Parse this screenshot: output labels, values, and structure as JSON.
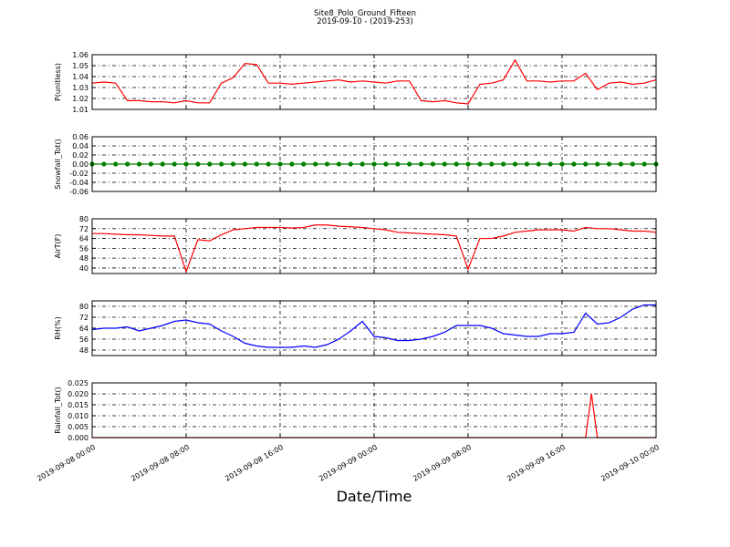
{
  "chart_data": [
    {
      "type": "line",
      "title": "Site8_Polo_Ground_Fifteen",
      "subtitle": "2019-09-10 - (2019-253)",
      "ylabel": "P(unitless)",
      "x": [
        "2019-09-08 00:00",
        "2019-09-08 01:00",
        "2019-09-08 02:00",
        "2019-09-08 03:00",
        "2019-09-08 04:00",
        "2019-09-08 05:00",
        "2019-09-08 06:00",
        "2019-09-08 07:00",
        "2019-09-08 08:00",
        "2019-09-08 09:00",
        "2019-09-08 10:00",
        "2019-09-08 11:00",
        "2019-09-08 12:00",
        "2019-09-08 13:00",
        "2019-09-08 14:00",
        "2019-09-08 15:00",
        "2019-09-08 16:00",
        "2019-09-08 17:00",
        "2019-09-08 18:00",
        "2019-09-08 19:00",
        "2019-09-08 20:00",
        "2019-09-08 21:00",
        "2019-09-08 22:00",
        "2019-09-08 23:00",
        "2019-09-09 00:00",
        "2019-09-09 01:00",
        "2019-09-09 02:00",
        "2019-09-09 03:00",
        "2019-09-09 04:00",
        "2019-09-09 05:00",
        "2019-09-09 06:00",
        "2019-09-09 07:00",
        "2019-09-09 08:00",
        "2019-09-09 09:00",
        "2019-09-09 10:00",
        "2019-09-09 11:00",
        "2019-09-09 12:00",
        "2019-09-09 13:00",
        "2019-09-09 14:00",
        "2019-09-09 15:00",
        "2019-09-09 16:00",
        "2019-09-09 17:00",
        "2019-09-09 18:00",
        "2019-09-09 19:00",
        "2019-09-09 20:00",
        "2019-09-09 21:00",
        "2019-09-09 22:00",
        "2019-09-09 23:00",
        "2019-09-10 00:00"
      ],
      "series": [
        {
          "color": "#ff0000",
          "values": [
            1.034,
            1.035,
            1.034,
            1.018,
            1.018,
            1.017,
            1.017,
            1.016,
            1.018,
            1.016,
            1.016,
            1.034,
            1.039,
            1.052,
            1.051,
            1.034,
            1.034,
            1.033,
            1.034,
            1.035,
            1.036,
            1.037,
            1.035,
            1.036,
            1.035,
            1.034,
            1.036,
            1.036,
            1.018,
            1.017,
            1.018,
            1.016,
            1.015,
            1.033,
            1.034,
            1.037,
            1.055,
            1.036,
            1.036,
            1.035,
            1.036,
            1.036,
            1.043,
            1.028,
            1.034,
            1.035,
            1.033,
            1.034,
            1.037
          ]
        }
      ],
      "xlim": [
        "2019-09-08 00:00",
        "2019-09-10 00:00"
      ],
      "xticks": [
        "2019-09-08 00:00",
        "2019-09-08 08:00",
        "2019-09-08 16:00",
        "2019-09-09 00:00",
        "2019-09-09 08:00",
        "2019-09-09 16:00",
        "2019-09-10 00:00"
      ],
      "ylim": [
        1.01,
        1.06
      ],
      "yticks": [
        1.01,
        1.02,
        1.03,
        1.04,
        1.05,
        1.06
      ],
      "grid": true
    },
    {
      "type": "line",
      "ylabel": "Snowfall_Tot()",
      "marker": true,
      "x": [
        "2019-09-08 00:00",
        "2019-09-08 01:00",
        "2019-09-08 02:00",
        "2019-09-08 03:00",
        "2019-09-08 04:00",
        "2019-09-08 05:00",
        "2019-09-08 06:00",
        "2019-09-08 07:00",
        "2019-09-08 08:00",
        "2019-09-08 09:00",
        "2019-09-08 10:00",
        "2019-09-08 11:00",
        "2019-09-08 12:00",
        "2019-09-08 13:00",
        "2019-09-08 14:00",
        "2019-09-08 15:00",
        "2019-09-08 16:00",
        "2019-09-08 17:00",
        "2019-09-08 18:00",
        "2019-09-08 19:00",
        "2019-09-08 20:00",
        "2019-09-08 21:00",
        "2019-09-08 22:00",
        "2019-09-08 23:00",
        "2019-09-09 00:00",
        "2019-09-09 01:00",
        "2019-09-09 02:00",
        "2019-09-09 03:00",
        "2019-09-09 04:00",
        "2019-09-09 05:00",
        "2019-09-09 06:00",
        "2019-09-09 07:00",
        "2019-09-09 08:00",
        "2019-09-09 09:00",
        "2019-09-09 10:00",
        "2019-09-09 11:00",
        "2019-09-09 12:00",
        "2019-09-09 13:00",
        "2019-09-09 14:00",
        "2019-09-09 15:00",
        "2019-09-09 16:00",
        "2019-09-09 17:00",
        "2019-09-09 18:00",
        "2019-09-09 19:00",
        "2019-09-09 20:00",
        "2019-09-09 21:00",
        "2019-09-09 22:00",
        "2019-09-09 23:00",
        "2019-09-10 00:00"
      ],
      "series": [
        {
          "color": "#008000",
          "values": [
            0,
            0,
            0,
            0,
            0,
            0,
            0,
            0,
            0,
            0,
            0,
            0,
            0,
            0,
            0,
            0,
            0,
            0,
            0,
            0,
            0,
            0,
            0,
            0,
            0,
            0,
            0,
            0,
            0,
            0,
            0,
            0,
            0,
            0,
            0,
            0,
            0,
            0,
            0,
            0,
            0,
            0,
            0,
            0,
            0,
            0,
            0,
            0,
            0
          ]
        }
      ],
      "xlim": [
        "2019-09-08 00:00",
        "2019-09-10 00:00"
      ],
      "xticks": [
        "2019-09-08 00:00",
        "2019-09-08 08:00",
        "2019-09-08 16:00",
        "2019-09-09 00:00",
        "2019-09-09 08:00",
        "2019-09-09 16:00",
        "2019-09-10 00:00"
      ],
      "ylim": [
        -0.06,
        0.06
      ],
      "yticks": [
        -0.06,
        -0.04,
        -0.02,
        {
          "value": 0,
          "label": "0.00"
        },
        0.02,
        0.04,
        0.06
      ],
      "grid": true
    },
    {
      "type": "line",
      "ylabel": "AirT(F)",
      "x": [
        "2019-09-08 00:00",
        "2019-09-08 01:00",
        "2019-09-08 02:00",
        "2019-09-08 03:00",
        "2019-09-08 04:00",
        "2019-09-08 05:00",
        "2019-09-08 06:00",
        "2019-09-08 07:00",
        "2019-09-08 08:00",
        "2019-09-08 09:00",
        "2019-09-08 10:00",
        "2019-09-08 11:00",
        "2019-09-08 12:00",
        "2019-09-08 13:00",
        "2019-09-08 14:00",
        "2019-09-08 15:00",
        "2019-09-08 16:00",
        "2019-09-08 17:00",
        "2019-09-08 18:00",
        "2019-09-08 19:00",
        "2019-09-08 20:00",
        "2019-09-08 21:00",
        "2019-09-08 22:00",
        "2019-09-08 23:00",
        "2019-09-09 00:00",
        "2019-09-09 01:00",
        "2019-09-09 02:00",
        "2019-09-09 03:00",
        "2019-09-09 04:00",
        "2019-09-09 05:00",
        "2019-09-09 06:00",
        "2019-09-09 07:00",
        "2019-09-09 08:00",
        "2019-09-09 09:00",
        "2019-09-09 10:00",
        "2019-09-09 11:00",
        "2019-09-09 12:00",
        "2019-09-09 13:00",
        "2019-09-09 14:00",
        "2019-09-09 15:00",
        "2019-09-09 16:00",
        "2019-09-09 17:00",
        "2019-09-09 18:00",
        "2019-09-09 19:00",
        "2019-09-09 20:00",
        "2019-09-09 21:00",
        "2019-09-09 22:00",
        "2019-09-09 23:00",
        "2019-09-10 00:00"
      ],
      "series": [
        {
          "color": "#ff0000",
          "values": [
            68,
            68,
            67.5,
            67,
            67,
            66.5,
            66,
            66,
            37,
            63,
            62,
            67,
            71,
            72,
            73,
            73,
            73,
            72.5,
            73,
            75,
            75,
            74,
            73.5,
            73,
            72,
            71,
            69,
            68.5,
            68,
            67.5,
            67,
            66,
            39,
            64,
            64,
            66,
            69,
            70,
            71,
            71,
            71,
            70,
            73,
            72,
            72,
            71,
            70,
            70,
            69
          ]
        }
      ],
      "xlim": [
        "2019-09-08 00:00",
        "2019-09-10 00:00"
      ],
      "xticks": [
        "2019-09-08 00:00",
        "2019-09-08 08:00",
        "2019-09-08 16:00",
        "2019-09-09 00:00",
        "2019-09-09 08:00",
        "2019-09-09 16:00",
        "2019-09-10 00:00"
      ],
      "ylim": [
        35.5,
        80
      ],
      "yticks": [
        40,
        48,
        56,
        64,
        72,
        80
      ],
      "grid": true
    },
    {
      "type": "line",
      "ylabel": "RH(%)",
      "x": [
        "2019-09-08 00:00",
        "2019-09-08 01:00",
        "2019-09-08 02:00",
        "2019-09-08 03:00",
        "2019-09-08 04:00",
        "2019-09-08 05:00",
        "2019-09-08 06:00",
        "2019-09-08 07:00",
        "2019-09-08 08:00",
        "2019-09-08 09:00",
        "2019-09-08 10:00",
        "2019-09-08 11:00",
        "2019-09-08 12:00",
        "2019-09-08 13:00",
        "2019-09-08 14:00",
        "2019-09-08 15:00",
        "2019-09-08 16:00",
        "2019-09-08 17:00",
        "2019-09-08 18:00",
        "2019-09-08 19:00",
        "2019-09-08 20:00",
        "2019-09-08 21:00",
        "2019-09-08 22:00",
        "2019-09-08 23:00",
        "2019-09-09 00:00",
        "2019-09-09 01:00",
        "2019-09-09 02:00",
        "2019-09-09 03:00",
        "2019-09-09 04:00",
        "2019-09-09 05:00",
        "2019-09-09 06:00",
        "2019-09-09 07:00",
        "2019-09-09 08:00",
        "2019-09-09 09:00",
        "2019-09-09 10:00",
        "2019-09-09 11:00",
        "2019-09-09 12:00",
        "2019-09-09 13:00",
        "2019-09-09 14:00",
        "2019-09-09 15:00",
        "2019-09-09 16:00",
        "2019-09-09 17:00",
        "2019-09-09 18:00",
        "2019-09-09 19:00",
        "2019-09-09 20:00",
        "2019-09-09 21:00",
        "2019-09-09 22:00",
        "2019-09-09 23:00",
        "2019-09-10 00:00"
      ],
      "series": [
        {
          "color": "#0000ff",
          "values": [
            63,
            64,
            64,
            65,
            62,
            64,
            66,
            69,
            70,
            68,
            67,
            62,
            58,
            53,
            51,
            50,
            50,
            50,
            51,
            50,
            52,
            56,
            62,
            69,
            58,
            57,
            55,
            55,
            56,
            58,
            61,
            66,
            66,
            66,
            64,
            60,
            59,
            58,
            58,
            60,
            60,
            61,
            75,
            67,
            68,
            72,
            78,
            81,
            81
          ]
        }
      ],
      "xlim": [
        "2019-09-08 00:00",
        "2019-09-10 00:00"
      ],
      "xticks": [
        "2019-09-08 00:00",
        "2019-09-08 08:00",
        "2019-09-08 16:00",
        "2019-09-09 00:00",
        "2019-09-09 08:00",
        "2019-09-09 16:00",
        "2019-09-10 00:00"
      ],
      "ylim": [
        44,
        84
      ],
      "yticks": [
        48,
        56,
        64,
        72,
        80
      ],
      "grid": true
    },
    {
      "type": "line",
      "ylabel": "Rainfall_Tot()",
      "xlabel": "Date/Time",
      "x": [
        "2019-09-08 00:00",
        "2019-09-08 01:00",
        "2019-09-08 02:00",
        "2019-09-08 03:00",
        "2019-09-08 04:00",
        "2019-09-08 05:00",
        "2019-09-08 06:00",
        "2019-09-08 07:00",
        "2019-09-08 08:00",
        "2019-09-08 09:00",
        "2019-09-08 10:00",
        "2019-09-08 11:00",
        "2019-09-08 12:00",
        "2019-09-08 13:00",
        "2019-09-08 14:00",
        "2019-09-08 15:00",
        "2019-09-08 16:00",
        "2019-09-08 17:00",
        "2019-09-08 18:00",
        "2019-09-08 19:00",
        "2019-09-08 20:00",
        "2019-09-08 21:00",
        "2019-09-08 22:00",
        "2019-09-08 23:00",
        "2019-09-09 00:00",
        "2019-09-09 01:00",
        "2019-09-09 02:00",
        "2019-09-09 03:00",
        "2019-09-09 04:00",
        "2019-09-09 05:00",
        "2019-09-09 06:00",
        "2019-09-09 07:00",
        "2019-09-09 08:00",
        "2019-09-09 09:00",
        "2019-09-09 10:00",
        "2019-09-09 11:00",
        "2019-09-09 12:00",
        "2019-09-09 13:00",
        "2019-09-09 14:00",
        "2019-09-09 15:00",
        "2019-09-09 16:00",
        "2019-09-09 17:00",
        "2019-09-09 18:00",
        "2019-09-09 18:30",
        "2019-09-09 19:00",
        "2019-09-09 20:00",
        "2019-09-09 21:00",
        "2019-09-09 22:00",
        "2019-09-09 23:00",
        "2019-09-10 00:00"
      ],
      "series": [
        {
          "color": "#ff0000",
          "values": [
            0,
            0,
            0,
            0,
            0,
            0,
            0,
            0,
            0,
            0,
            0,
            0,
            0,
            0,
            0,
            0,
            0,
            0,
            0,
            0,
            0,
            0,
            0,
            0,
            0,
            0,
            0,
            0,
            0,
            0,
            0,
            0,
            0,
            0,
            0,
            0,
            0,
            0,
            0,
            0,
            0,
            0,
            0,
            0.02,
            0,
            0,
            0,
            0,
            0,
            0
          ]
        }
      ],
      "xlim": [
        "2019-09-08 00:00",
        "2019-09-10 00:00"
      ],
      "xticks": [
        "2019-09-08 00:00",
        "2019-09-08 08:00",
        "2019-09-08 16:00",
        "2019-09-09 00:00",
        "2019-09-09 08:00",
        "2019-09-09 16:00",
        "2019-09-10 00:00"
      ],
      "ylim": [
        0,
        0.025
      ],
      "yticks": [
        {
          "value": 0,
          "label": "0.000"
        },
        0.005,
        {
          "value": 0.01,
          "label": "0.010"
        },
        0.015,
        {
          "value": 0.02,
          "label": "0.020"
        },
        0.025
      ],
      "grid": true
    }
  ]
}
